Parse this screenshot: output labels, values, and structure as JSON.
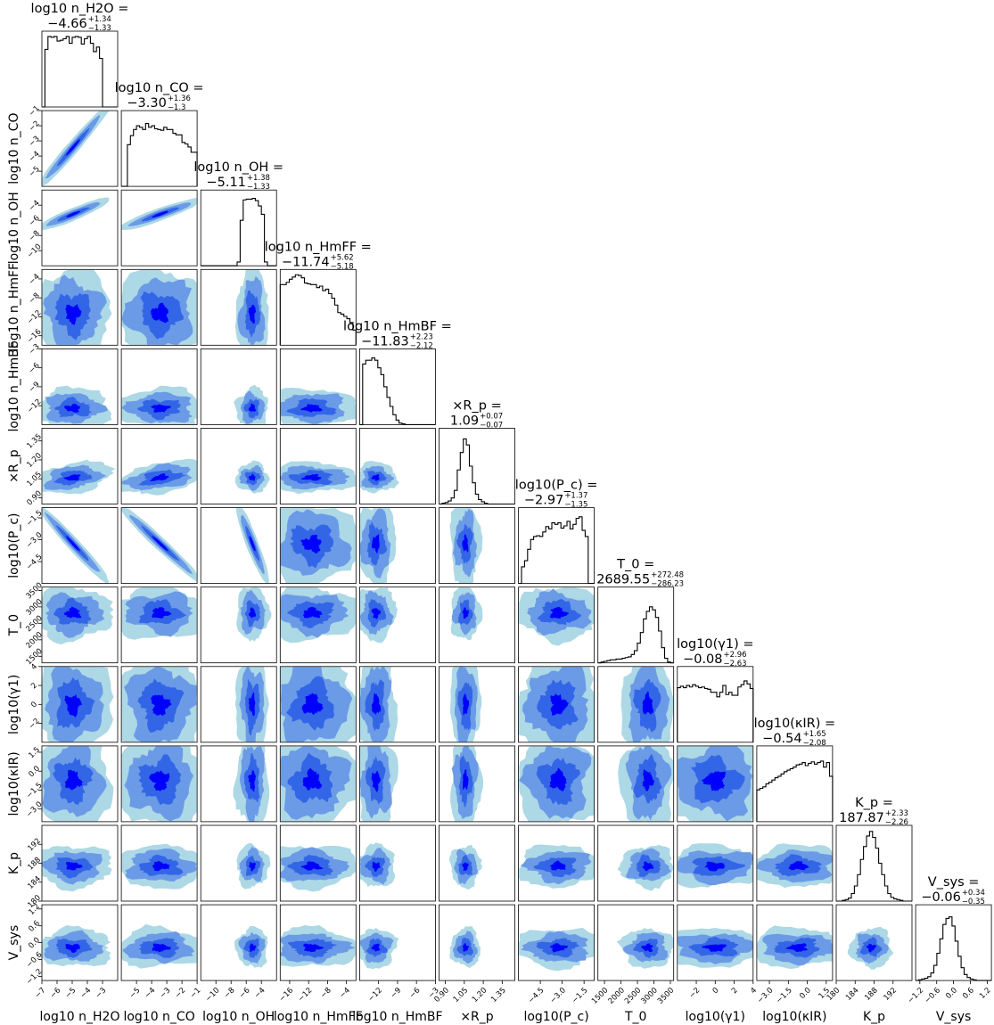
{
  "chart_data": {
    "type": "corner",
    "title": "",
    "contour_levels": [
      "3-sigma",
      "2-sigma",
      "1-sigma",
      "peak"
    ],
    "colors": {
      "level_3": "#add8e6",
      "level_2": "#6b9be6",
      "level_1": "#3366e6",
      "level_0": "#0000ff",
      "line": "#000000"
    },
    "parameters": [
      {
        "key": "h2o",
        "label": "log10 n_H2O",
        "title": "log10 n_H2O = −4.66 +1.34 −1.33",
        "median": -4.66,
        "err_plus": 1.34,
        "err_minus": 1.33,
        "range": [
          -7.0,
          -2.0
        ],
        "ticks": [
          -7,
          -6,
          -5,
          -4,
          -3
        ],
        "tick_labels": [
          "−7",
          "−6",
          "−5",
          "−4",
          "−3"
        ],
        "hist": [
          0.0,
          0.76,
          0.93,
          0.92,
          0.93,
          0.87,
          0.88,
          0.9,
          0.93,
          0.84,
          0.92,
          0.93,
          0.92,
          0.83,
          0.9,
          0.93,
          0.84,
          0.73,
          0.79,
          0.64,
          0.0,
          0.0,
          0.0,
          0.0,
          0.0
        ]
      },
      {
        "key": "co",
        "label": "log10 n_CO",
        "title": "log10 n_CO = −3.30 +1.36 −1.30",
        "median": -3.3,
        "err_plus": 1.36,
        "err_minus": 1.3,
        "range": [
          -6.0,
          -1.0
        ],
        "ticks": [
          -5,
          -4,
          -3,
          -2,
          -1
        ],
        "tick_labels": [
          "−5",
          "−4",
          "−3",
          "−2",
          "−1"
        ],
        "hist": [
          0.0,
          0.0,
          0.55,
          0.67,
          0.75,
          0.8,
          0.78,
          0.75,
          0.83,
          0.78,
          0.8,
          0.76,
          0.75,
          0.74,
          0.78,
          0.75,
          0.75,
          0.7,
          0.68,
          0.68,
          0.58,
          0.56,
          0.52,
          0.45,
          0.45
        ]
      },
      {
        "key": "oh",
        "label": "log10 n_OH",
        "title": "log10 n_OH = −5.11 +1.38 −1.33",
        "median": -5.11,
        "err_plus": 1.38,
        "err_minus": 1.33,
        "range": [
          -12.0,
          -2.0
        ],
        "ticks": [
          -10,
          -8,
          -6,
          -4
        ],
        "tick_labels": [
          "−10",
          "−8",
          "−6",
          "−4"
        ],
        "hist": [
          0.0,
          0.0,
          0.0,
          0.0,
          0.0,
          0.0,
          0.0,
          0.0,
          0.0,
          0.0,
          0.0,
          0.0,
          0.05,
          0.6,
          0.87,
          0.88,
          0.88,
          0.89,
          0.86,
          0.79,
          0.68,
          0.05,
          0.0,
          0.0,
          0.0
        ]
      },
      {
        "key": "hmff",
        "label": "log10 n_HmFF",
        "title": "log10 n_HmFF = −11.74 +5.62 −5.18",
        "median": -11.74,
        "err_plus": 5.62,
        "err_minus": 5.18,
        "range": [
          -18.0,
          -2.0
        ],
        "ticks": [
          -16,
          -12,
          -8,
          -4
        ],
        "tick_labels": [
          "−16",
          "−12",
          "−8",
          "−4"
        ],
        "hist": [
          0.8,
          0.8,
          0.83,
          0.87,
          0.9,
          0.93,
          0.92,
          0.89,
          0.82,
          0.81,
          0.8,
          0.8,
          0.76,
          0.78,
          0.72,
          0.74,
          0.68,
          0.62,
          0.53,
          0.43,
          0.41,
          0.38,
          0.35,
          0.3,
          0.2
        ]
      },
      {
        "key": "hmbf",
        "label": "log10 n_HmBF",
        "title": "log10 n_HmBF = −11.83 +2.23 −2.12",
        "median": -11.83,
        "err_plus": 2.23,
        "err_minus": 2.12,
        "range": [
          -15.0,
          -3.0
        ],
        "ticks": [
          -12,
          -9,
          -6,
          -3
        ],
        "tick_labels": [
          "−12",
          "−9",
          "−6",
          "−3"
        ],
        "hist": [
          0.0,
          0.8,
          0.85,
          0.85,
          0.88,
          0.85,
          0.75,
          0.66,
          0.5,
          0.36,
          0.24,
          0.13,
          0.06,
          0.02,
          0.01,
          0.0,
          0.0,
          0.0,
          0.0,
          0.0,
          0.0,
          0.0,
          0.0,
          0.0,
          0.0
        ]
      },
      {
        "key": "rp",
        "label": "×R_p",
        "title": "×R_p = 1.09 +0.07 −0.07",
        "median": 1.09,
        "err_plus": 0.07,
        "err_minus": 0.07,
        "range": [
          0.85,
          1.45
        ],
        "ticks": [
          0.9,
          1.05,
          1.2,
          1.35
        ],
        "tick_labels": [
          "0.90",
          "1.05",
          "1.20",
          "1.35"
        ],
        "hist": [
          0.0,
          0.01,
          0.02,
          0.04,
          0.08,
          0.18,
          0.45,
          0.68,
          0.86,
          0.78,
          0.5,
          0.28,
          0.13,
          0.06,
          0.03,
          0.01,
          0.0,
          0.0,
          0.0,
          0.0,
          0.0,
          0.0,
          0.0,
          0.0,
          0.0
        ]
      },
      {
        "key": "pc",
        "label": "log10(P_c)",
        "title": "log10(P_c) = −2.97 +1.37 −1.35",
        "median": -2.97,
        "err_plus": 1.37,
        "err_minus": 1.35,
        "range": [
          -6.0,
          -0.8
        ],
        "ticks": [
          -4.5,
          -3.0,
          -1.5
        ],
        "tick_labels": [
          "−4.5",
          "−3.0",
          "−1.5"
        ],
        "hist": [
          0.0,
          0.22,
          0.3,
          0.45,
          0.58,
          0.62,
          0.63,
          0.62,
          0.68,
          0.75,
          0.72,
          0.8,
          0.78,
          0.8,
          0.73,
          0.76,
          0.82,
          0.72,
          0.78,
          0.86,
          0.88,
          0.7,
          0.62,
          0.0,
          0.0
        ]
      },
      {
        "key": "t0",
        "label": "T_0",
        "title": "T_0 = 2689.55 +272.48 −286.23",
        "median": 2689.55,
        "err_plus": 272.48,
        "err_minus": 286.23,
        "range": [
          1300.0,
          3600.0
        ],
        "ticks": [
          1500,
          2000,
          2500,
          3000,
          3500
        ],
        "tick_labels": [
          "1500",
          "2000",
          "2500",
          "3000",
          "3500"
        ],
        "hist": [
          0.0,
          0.01,
          0.02,
          0.03,
          0.04,
          0.04,
          0.05,
          0.05,
          0.06,
          0.07,
          0.08,
          0.11,
          0.16,
          0.26,
          0.4,
          0.58,
          0.68,
          0.74,
          0.7,
          0.6,
          0.42,
          0.2,
          0.06,
          0.01,
          0.0
        ]
      },
      {
        "key": "g1",
        "label": "log10(γ1)",
        "title": "log10(γ1) = −0.08 +2.96 −2.63",
        "median": -0.08,
        "err_plus": 2.96,
        "err_minus": 2.63,
        "range": [
          -4.0,
          4.0
        ],
        "ticks": [
          -2,
          0,
          2,
          4
        ],
        "tick_labels": [
          "−2",
          "0",
          "2",
          "4"
        ],
        "hist": [
          0.72,
          0.74,
          0.72,
          0.75,
          0.73,
          0.76,
          0.74,
          0.72,
          0.73,
          0.71,
          0.7,
          0.66,
          0.66,
          0.6,
          0.66,
          0.75,
          0.63,
          0.66,
          0.62,
          0.62,
          0.73,
          0.76,
          0.81,
          0.77,
          0.71
        ]
      },
      {
        "key": "kir",
        "label": "log10(κIR)",
        "title": "log10(κIR) = −0.54 +1.65 −2.08",
        "median": -0.54,
        "err_plus": 1.65,
        "err_minus": 2.08,
        "range": [
          -4.0,
          2.0
        ],
        "ticks": [
          -3,
          -1.5,
          0,
          1.5
        ],
        "tick_labels": [
          "−3.0",
          "−1.5",
          "0.0",
          "1.5"
        ],
        "hist": [
          0.42,
          0.44,
          0.46,
          0.5,
          0.52,
          0.55,
          0.58,
          0.6,
          0.63,
          0.66,
          0.68,
          0.7,
          0.72,
          0.75,
          0.76,
          0.78,
          0.74,
          0.77,
          0.79,
          0.76,
          0.78,
          0.8,
          0.72,
          0.78,
          0.6
        ]
      },
      {
        "key": "kp",
        "label": "K_p",
        "title": "K_p = 187.87 +2.33 −2.26",
        "median": 187.87,
        "err_plus": 2.33,
        "err_minus": 2.26,
        "range": [
          180.0,
          196.0
        ],
        "ticks": [
          180,
          184,
          188,
          192
        ],
        "tick_labels": [
          "180",
          "184",
          "188",
          "192"
        ],
        "hist": [
          0.0,
          0.0,
          0.01,
          0.02,
          0.04,
          0.1,
          0.2,
          0.35,
          0.55,
          0.72,
          0.86,
          0.92,
          0.84,
          0.7,
          0.5,
          0.35,
          0.2,
          0.1,
          0.05,
          0.03,
          0.02,
          0.01,
          0.0,
          0.0,
          0.0
        ]
      },
      {
        "key": "vsys",
        "label": "V_sys",
        "title": "V_sys = −0.06 +0.34 −0.35",
        "median": -0.06,
        "err_plus": 0.34,
        "err_minus": 0.35,
        "range": [
          -1.35,
          1.35
        ],
        "ticks": [
          -1.2,
          -0.6,
          0.0,
          0.6,
          1.2
        ],
        "tick_labels": [
          "−1.2",
          "−0.6",
          "0.0",
          "0.6",
          "1.2"
        ],
        "hist": [
          0.0,
          0.01,
          0.02,
          0.03,
          0.05,
          0.1,
          0.2,
          0.36,
          0.55,
          0.74,
          0.82,
          0.84,
          0.72,
          0.52,
          0.32,
          0.17,
          0.08,
          0.04,
          0.02,
          0.01,
          0.0,
          0.0,
          0.0,
          0.0,
          0.0
        ]
      }
    ],
    "pairs": [
      {
        "x": "h2o",
        "y": "co",
        "corr": 0.97
      },
      {
        "x": "h2o",
        "y": "oh",
        "corr": 0.92
      },
      {
        "x": "co",
        "y": "oh",
        "corr": 0.93
      },
      {
        "x": "h2o",
        "y": "pc",
        "corr": -0.96
      },
      {
        "x": "co",
        "y": "pc",
        "corr": -0.96
      },
      {
        "x": "oh",
        "y": "pc",
        "corr": -0.96
      },
      {
        "x": "h2o",
        "y": "rp",
        "corr": -0.4
      },
      {
        "x": "co",
        "y": "rp",
        "corr": -0.45
      },
      {
        "x": "oh",
        "y": "hmff",
        "corr": 0.0
      },
      {
        "x": "oh",
        "y": "hmbf",
        "corr": 0.0
      }
    ]
  }
}
